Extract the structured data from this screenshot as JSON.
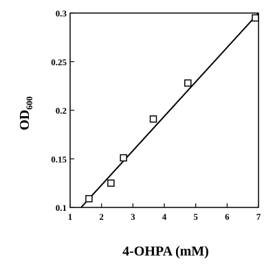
{
  "chart_data": {
    "type": "scatter",
    "title": "",
    "xlabel": "4-OHPA (mM)",
    "ylabel_main": "OD",
    "ylabel_sub": "600",
    "xlim": [
      1,
      7
    ],
    "ylim": [
      0.1,
      0.3
    ],
    "x_ticks": [
      1,
      2,
      3,
      4,
      5,
      6,
      7
    ],
    "x_tick_labels": [
      "1",
      "2",
      "3",
      "4",
      "5",
      "6",
      "7"
    ],
    "y_ticks": [
      0.1,
      0.15,
      0.2,
      0.25,
      0.3
    ],
    "y_tick_labels": [
      "0.1",
      "0.15",
      "0.2",
      "0.25",
      "0.3"
    ],
    "grid": false,
    "series": [
      {
        "marker": "open-square",
        "x": [
          1.6,
          2.3,
          2.7,
          3.65,
          4.75,
          6.9
        ],
        "y": [
          0.109,
          0.125,
          0.151,
          0.191,
          0.228,
          0.295
        ]
      }
    ],
    "fit_line": {
      "x": [
        1.35,
        7.0
      ],
      "y": [
        0.1,
        0.3
      ]
    }
  }
}
